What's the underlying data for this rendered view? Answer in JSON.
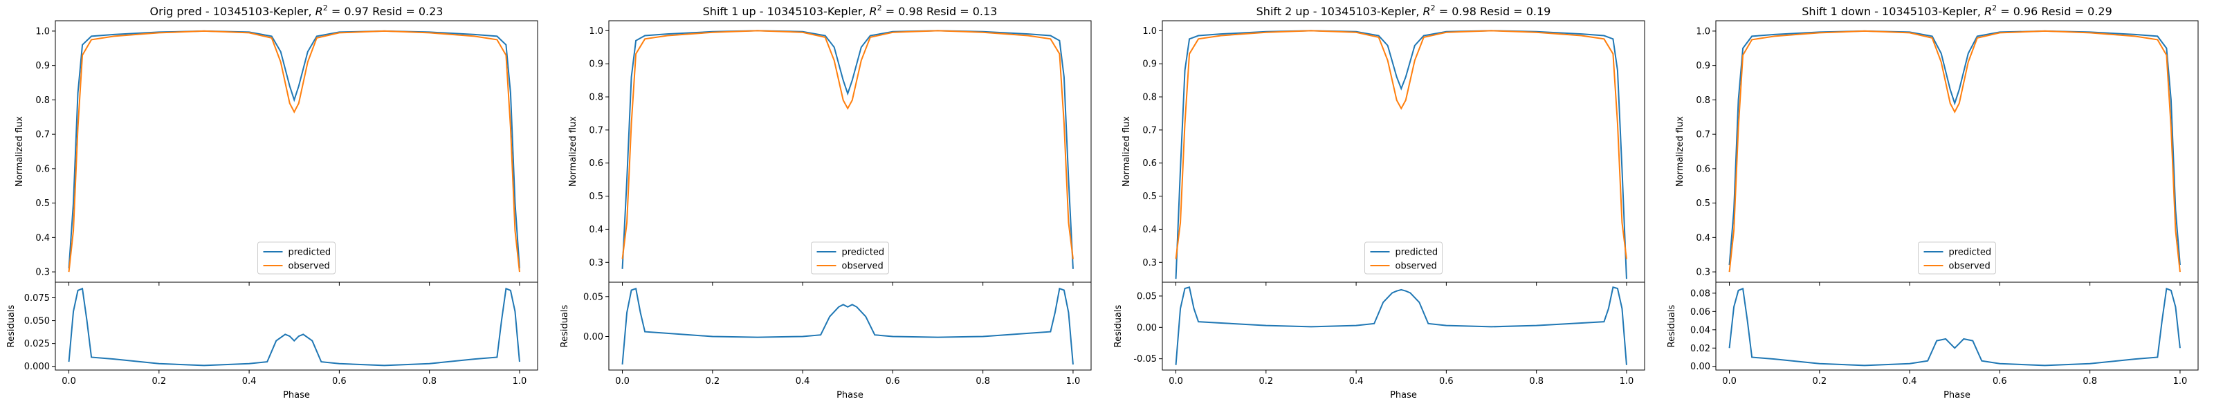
{
  "colors": {
    "predicted": "#1f77b4",
    "observed": "#ff7f0e"
  },
  "chart_data": [
    {
      "type": "line",
      "title": "Orig pred - 10345103-Kepler, R² = 0.97 Resid = 0.23",
      "title_parts": {
        "before": "Orig pred - 10345103-Kepler, ",
        "r2_symbol": "R",
        "r2_sup": "2",
        "after": " = 0.97 Resid = 0.23"
      },
      "xlabel": "Phase",
      "ylabel": "Normalized flux",
      "resid_ylabel": "Residuals",
      "xlim": [
        -0.03,
        1.04
      ],
      "ylim": [
        0.27,
        1.03
      ],
      "resid_ylim": [
        -0.004,
        0.092
      ],
      "xticks": [
        "0.0",
        "0.2",
        "0.4",
        "0.6",
        "0.8",
        "1.0"
      ],
      "yticks": [
        "0.3",
        "0.4",
        "0.5",
        "0.6",
        "0.7",
        "0.8",
        "0.9",
        "1.0"
      ],
      "resid_yticks": [
        "0.000",
        "0.025",
        "0.050",
        "0.075"
      ],
      "legend": [
        "predicted",
        "observed"
      ],
      "legend_position": "lower-center",
      "series": [
        {
          "name": "predicted",
          "x": [
            0.0,
            0.01,
            0.02,
            0.03,
            0.05,
            0.1,
            0.2,
            0.3,
            0.4,
            0.45,
            0.47,
            0.49,
            0.5,
            0.51,
            0.53,
            0.55,
            0.6,
            0.7,
            0.8,
            0.9,
            0.95,
            0.97,
            0.98,
            0.99,
            1.0
          ],
          "y": [
            0.31,
            0.5,
            0.82,
            0.96,
            0.985,
            0.99,
            0.997,
            1.0,
            0.997,
            0.985,
            0.94,
            0.84,
            0.8,
            0.84,
            0.94,
            0.985,
            0.997,
            1.0,
            0.997,
            0.99,
            0.985,
            0.96,
            0.82,
            0.5,
            0.31
          ]
        },
        {
          "name": "observed",
          "x": [
            0.0,
            0.01,
            0.02,
            0.03,
            0.05,
            0.1,
            0.2,
            0.3,
            0.4,
            0.45,
            0.47,
            0.49,
            0.5,
            0.51,
            0.53,
            0.55,
            0.6,
            0.7,
            0.8,
            0.9,
            0.95,
            0.97,
            0.98,
            0.99,
            1.0
          ],
          "y": [
            0.3,
            0.42,
            0.72,
            0.93,
            0.975,
            0.985,
            0.995,
            1.0,
            0.995,
            0.98,
            0.91,
            0.79,
            0.765,
            0.79,
            0.91,
            0.98,
            0.995,
            1.0,
            0.995,
            0.985,
            0.975,
            0.93,
            0.72,
            0.42,
            0.3
          ]
        }
      ],
      "residuals": {
        "x": [
          0.0,
          0.01,
          0.02,
          0.03,
          0.04,
          0.05,
          0.1,
          0.2,
          0.3,
          0.4,
          0.44,
          0.46,
          0.48,
          0.49,
          0.5,
          0.51,
          0.52,
          0.54,
          0.56,
          0.6,
          0.7,
          0.8,
          0.9,
          0.95,
          0.96,
          0.97,
          0.98,
          0.99,
          1.0
        ],
        "y": [
          0.005,
          0.06,
          0.083,
          0.085,
          0.05,
          0.01,
          0.008,
          0.003,
          0.001,
          0.003,
          0.005,
          0.028,
          0.035,
          0.033,
          0.028,
          0.033,
          0.035,
          0.028,
          0.005,
          0.003,
          0.001,
          0.003,
          0.008,
          0.01,
          0.05,
          0.085,
          0.083,
          0.06,
          0.005
        ]
      }
    },
    {
      "type": "line",
      "title": "Shift 1 up - 10345103-Kepler, R² = 0.98 Resid = 0.13",
      "title_parts": {
        "before": "Shift 1 up - 10345103-Kepler, ",
        "r2_symbol": "R",
        "r2_sup": "2",
        "after": " = 0.98 Resid = 0.13"
      },
      "xlabel": "Phase",
      "ylabel": "Normalized flux",
      "resid_ylabel": "Residuals",
      "xlim": [
        -0.03,
        1.04
      ],
      "ylim": [
        0.24,
        1.03
      ],
      "resid_ylim": [
        -0.042,
        0.068
      ],
      "xticks": [
        "0.0",
        "0.2",
        "0.4",
        "0.6",
        "0.8",
        "1.0"
      ],
      "yticks": [
        "0.3",
        "0.4",
        "0.5",
        "0.6",
        "0.7",
        "0.8",
        "0.9",
        "1.0"
      ],
      "resid_yticks": [
        "0.00",
        "0.05"
      ],
      "legend": [
        "predicted",
        "observed"
      ],
      "legend_position": "lower-center",
      "series": [
        {
          "name": "predicted",
          "x": [
            0.0,
            0.01,
            0.02,
            0.03,
            0.05,
            0.1,
            0.2,
            0.3,
            0.4,
            0.45,
            0.47,
            0.49,
            0.5,
            0.51,
            0.53,
            0.55,
            0.6,
            0.7,
            0.8,
            0.9,
            0.95,
            0.97,
            0.98,
            0.99,
            1.0
          ],
          "y": [
            0.28,
            0.55,
            0.86,
            0.97,
            0.985,
            0.99,
            0.997,
            1.0,
            0.997,
            0.985,
            0.95,
            0.85,
            0.81,
            0.85,
            0.95,
            0.985,
            0.997,
            1.0,
            0.997,
            0.99,
            0.985,
            0.97,
            0.86,
            0.55,
            0.28
          ]
        },
        {
          "name": "observed",
          "x": [
            0.0,
            0.01,
            0.02,
            0.03,
            0.05,
            0.1,
            0.2,
            0.3,
            0.4,
            0.45,
            0.47,
            0.49,
            0.5,
            0.51,
            0.53,
            0.55,
            0.6,
            0.7,
            0.8,
            0.9,
            0.95,
            0.97,
            0.98,
            0.99,
            1.0
          ],
          "y": [
            0.31,
            0.42,
            0.72,
            0.93,
            0.975,
            0.985,
            0.995,
            1.0,
            0.995,
            0.98,
            0.91,
            0.79,
            0.765,
            0.79,
            0.91,
            0.98,
            0.995,
            1.0,
            0.995,
            0.985,
            0.975,
            0.93,
            0.72,
            0.42,
            0.31
          ]
        }
      ],
      "residuals": {
        "x": [
          0.0,
          0.01,
          0.02,
          0.03,
          0.04,
          0.05,
          0.1,
          0.2,
          0.3,
          0.4,
          0.44,
          0.46,
          0.48,
          0.49,
          0.5,
          0.51,
          0.52,
          0.54,
          0.56,
          0.6,
          0.7,
          0.8,
          0.9,
          0.95,
          0.96,
          0.97,
          0.98,
          0.99,
          1.0
        ],
        "y": [
          -0.035,
          0.03,
          0.058,
          0.06,
          0.03,
          0.006,
          0.004,
          0.0,
          -0.001,
          0.0,
          0.002,
          0.025,
          0.037,
          0.04,
          0.037,
          0.04,
          0.037,
          0.025,
          0.002,
          0.0,
          -0.001,
          0.0,
          0.004,
          0.006,
          0.03,
          0.06,
          0.058,
          0.03,
          -0.035
        ]
      }
    },
    {
      "type": "line",
      "title": "Shift 2 up - 10345103-Kepler, R² = 0.98 Resid = 0.19",
      "title_parts": {
        "before": "Shift 2 up - 10345103-Kepler, ",
        "r2_symbol": "R",
        "r2_sup": "2",
        "after": " = 0.98 Resid = 0.19"
      },
      "xlabel": "Phase",
      "ylabel": "Normalized flux",
      "resid_ylabel": "Residuals",
      "xlim": [
        -0.03,
        1.04
      ],
      "ylim": [
        0.24,
        1.03
      ],
      "resid_ylim": [
        -0.068,
        0.072
      ],
      "xticks": [
        "0.0",
        "0.2",
        "0.4",
        "0.6",
        "0.8",
        "1.0"
      ],
      "yticks": [
        "0.3",
        "0.4",
        "0.5",
        "0.6",
        "0.7",
        "0.8",
        "0.9",
        "1.0"
      ],
      "resid_yticks": [
        "-0.05",
        "0.00",
        "0.05"
      ],
      "legend": [
        "predicted",
        "observed"
      ],
      "legend_position": "lower-center",
      "series": [
        {
          "name": "predicted",
          "x": [
            0.0,
            0.01,
            0.02,
            0.03,
            0.05,
            0.1,
            0.2,
            0.3,
            0.4,
            0.45,
            0.47,
            0.49,
            0.5,
            0.51,
            0.53,
            0.55,
            0.6,
            0.7,
            0.8,
            0.9,
            0.95,
            0.97,
            0.98,
            0.99,
            1.0
          ],
          "y": [
            0.25,
            0.58,
            0.88,
            0.975,
            0.985,
            0.99,
            0.997,
            1.0,
            0.997,
            0.985,
            0.955,
            0.86,
            0.825,
            0.86,
            0.955,
            0.985,
            0.997,
            1.0,
            0.997,
            0.99,
            0.985,
            0.975,
            0.88,
            0.58,
            0.25
          ]
        },
        {
          "name": "observed",
          "x": [
            0.0,
            0.01,
            0.02,
            0.03,
            0.05,
            0.1,
            0.2,
            0.3,
            0.4,
            0.45,
            0.47,
            0.49,
            0.5,
            0.51,
            0.53,
            0.55,
            0.6,
            0.7,
            0.8,
            0.9,
            0.95,
            0.97,
            0.98,
            0.99,
            1.0
          ],
          "y": [
            0.31,
            0.42,
            0.72,
            0.93,
            0.975,
            0.985,
            0.995,
            1.0,
            0.995,
            0.98,
            0.91,
            0.79,
            0.765,
            0.79,
            0.91,
            0.98,
            0.995,
            1.0,
            0.995,
            0.985,
            0.975,
            0.93,
            0.72,
            0.42,
            0.31
          ]
        }
      ],
      "residuals": {
        "x": [
          0.0,
          0.01,
          0.02,
          0.03,
          0.04,
          0.05,
          0.1,
          0.2,
          0.3,
          0.4,
          0.44,
          0.46,
          0.48,
          0.49,
          0.5,
          0.51,
          0.52,
          0.54,
          0.56,
          0.6,
          0.7,
          0.8,
          0.9,
          0.95,
          0.96,
          0.97,
          0.98,
          0.99,
          1.0
        ],
        "y": [
          -0.06,
          0.03,
          0.062,
          0.064,
          0.03,
          0.009,
          0.007,
          0.003,
          0.001,
          0.003,
          0.006,
          0.04,
          0.055,
          0.058,
          0.06,
          0.058,
          0.055,
          0.04,
          0.006,
          0.003,
          0.001,
          0.003,
          0.007,
          0.009,
          0.03,
          0.064,
          0.062,
          0.03,
          -0.06
        ]
      }
    },
    {
      "type": "line",
      "title": "Shift 1 down - 10345103-Kepler, R² = 0.96 Resid = 0.29",
      "title_parts": {
        "before": "Shift 1 down - 10345103-Kepler, ",
        "r2_symbol": "R",
        "r2_sup": "2",
        "after": " = 0.96 Resid = 0.29"
      },
      "xlabel": "Phase",
      "ylabel": "Normalized flux",
      "resid_ylabel": "Residuals",
      "xlim": [
        -0.03,
        1.04
      ],
      "ylim": [
        0.27,
        1.03
      ],
      "resid_ylim": [
        -0.004,
        0.092
      ],
      "xticks": [
        "0.0",
        "0.2",
        "0.4",
        "0.6",
        "0.8",
        "1.0"
      ],
      "yticks": [
        "0.3",
        "0.4",
        "0.5",
        "0.6",
        "0.7",
        "0.8",
        "0.9",
        "1.0"
      ],
      "resid_yticks": [
        "0.00",
        "0.02",
        "0.04",
        "0.06",
        "0.08"
      ],
      "legend": [
        "predicted",
        "observed"
      ],
      "legend_position": "lower-center",
      "series": [
        {
          "name": "predicted",
          "x": [
            0.0,
            0.01,
            0.02,
            0.03,
            0.05,
            0.1,
            0.2,
            0.3,
            0.4,
            0.45,
            0.47,
            0.49,
            0.5,
            0.51,
            0.53,
            0.55,
            0.6,
            0.7,
            0.8,
            0.9,
            0.95,
            0.97,
            0.98,
            0.99,
            1.0
          ],
          "y": [
            0.32,
            0.48,
            0.8,
            0.95,
            0.985,
            0.99,
            0.997,
            1.0,
            0.997,
            0.985,
            0.935,
            0.83,
            0.79,
            0.83,
            0.935,
            0.985,
            0.997,
            1.0,
            0.997,
            0.99,
            0.985,
            0.95,
            0.8,
            0.48,
            0.32
          ]
        },
        {
          "name": "observed",
          "x": [
            0.0,
            0.01,
            0.02,
            0.03,
            0.05,
            0.1,
            0.2,
            0.3,
            0.4,
            0.45,
            0.47,
            0.49,
            0.5,
            0.51,
            0.53,
            0.55,
            0.6,
            0.7,
            0.8,
            0.9,
            0.95,
            0.97,
            0.98,
            0.99,
            1.0
          ],
          "y": [
            0.3,
            0.42,
            0.72,
            0.93,
            0.975,
            0.985,
            0.995,
            1.0,
            0.995,
            0.98,
            0.91,
            0.79,
            0.765,
            0.79,
            0.91,
            0.98,
            0.995,
            1.0,
            0.995,
            0.985,
            0.975,
            0.93,
            0.72,
            0.42,
            0.3
          ]
        }
      ],
      "residuals": {
        "x": [
          0.0,
          0.01,
          0.02,
          0.03,
          0.04,
          0.05,
          0.1,
          0.2,
          0.3,
          0.4,
          0.44,
          0.46,
          0.48,
          0.49,
          0.5,
          0.51,
          0.52,
          0.54,
          0.56,
          0.6,
          0.7,
          0.8,
          0.9,
          0.95,
          0.96,
          0.97,
          0.98,
          0.99,
          1.0
        ],
        "y": [
          0.02,
          0.065,
          0.083,
          0.085,
          0.05,
          0.01,
          0.008,
          0.003,
          0.001,
          0.003,
          0.006,
          0.028,
          0.03,
          0.025,
          0.02,
          0.025,
          0.03,
          0.028,
          0.006,
          0.003,
          0.001,
          0.003,
          0.008,
          0.01,
          0.05,
          0.085,
          0.083,
          0.065,
          0.02
        ]
      }
    }
  ]
}
